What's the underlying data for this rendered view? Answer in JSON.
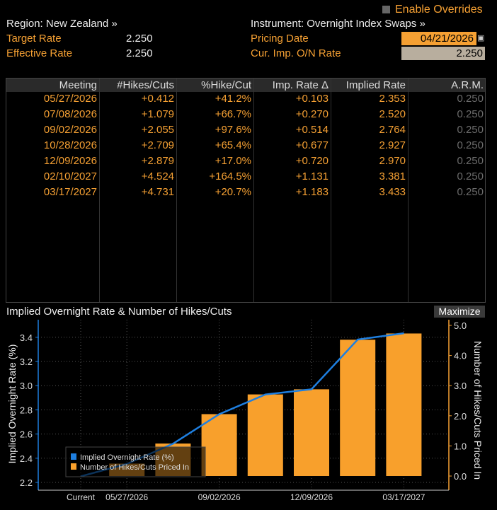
{
  "header": {
    "enable_overrides": "Enable Overrides",
    "region": "Region: New Zealand »",
    "instrument": "Instrument: Overnight Index Swaps »",
    "target_rate_label": "Target Rate",
    "target_rate": "2.250",
    "effective_rate_label": "Effective Rate",
    "effective_rate": "2.250",
    "pricing_date_label": "Pricing Date",
    "pricing_date": "04/21/2026",
    "cur_imp_label": "Cur. Imp. O/N Rate",
    "cur_imp": "2.250"
  },
  "table": {
    "columns": [
      "Meeting",
      "#Hikes/Cuts",
      "%Hike/Cut",
      "Imp. Rate Δ",
      "Implied Rate",
      "A.R.M."
    ],
    "rows": [
      [
        "05/27/2026",
        "+0.412",
        "+41.2%",
        "+0.103",
        "2.353",
        "0.250"
      ],
      [
        "07/08/2026",
        "+1.079",
        "+66.7%",
        "+0.270",
        "2.520",
        "0.250"
      ],
      [
        "09/02/2026",
        "+2.055",
        "+97.6%",
        "+0.514",
        "2.764",
        "0.250"
      ],
      [
        "10/28/2026",
        "+2.709",
        "+65.4%",
        "+0.677",
        "2.927",
        "0.250"
      ],
      [
        "12/09/2026",
        "+2.879",
        "+17.0%",
        "+0.720",
        "2.970",
        "0.250"
      ],
      [
        "02/10/2027",
        "+4.524",
        "+164.5%",
        "+1.131",
        "3.381",
        "0.250"
      ],
      [
        "03/17/2027",
        "+4.731",
        "+20.7%",
        "+1.183",
        "3.433",
        "0.250"
      ]
    ]
  },
  "chart": {
    "title": "Implied Overnight Rate & Number of Hikes/Cuts",
    "maximize": "Maximize"
  },
  "chart_data": {
    "type": "bar+line",
    "categories": [
      "Current",
      "05/27/2026",
      "07/08/2026",
      "09/02/2026",
      "10/28/2026",
      "12/09/2026",
      "02/10/2027",
      "03/17/2027"
    ],
    "x_tick_labels": [
      "Current",
      "05/27/2026",
      "09/02/2026",
      "12/09/2026",
      "03/17/2027"
    ],
    "ylabel_left": "Implied Overnight Rate (%)",
    "ylabel_right": "Number of Hikes/Cuts Priced In",
    "ylim_left": [
      2.2,
      3.5
    ],
    "yticks_left": [
      "2.2",
      "2.4",
      "2.6",
      "2.8",
      "3.0",
      "3.2",
      "3.4"
    ],
    "ylim_right": [
      -0.5,
      5.1
    ],
    "yticks_right": [
      "0.0",
      "1.0",
      "2.0",
      "3.0",
      "4.0",
      "5.0"
    ],
    "grid": true,
    "legend": "bottom-left",
    "series": [
      {
        "name": "Implied Overnight Rate (%)",
        "type": "line",
        "axis": "left",
        "color": "#1e7fe0",
        "values": [
          2.25,
          2.353,
          2.52,
          2.764,
          2.927,
          2.97,
          3.381,
          3.433
        ]
      },
      {
        "name": "Number of Hikes/Cuts Priced In",
        "type": "bar",
        "axis": "right",
        "color": "#f8a02c",
        "values": [
          0,
          0.412,
          1.079,
          2.055,
          2.709,
          2.879,
          4.524,
          4.731
        ]
      }
    ]
  }
}
